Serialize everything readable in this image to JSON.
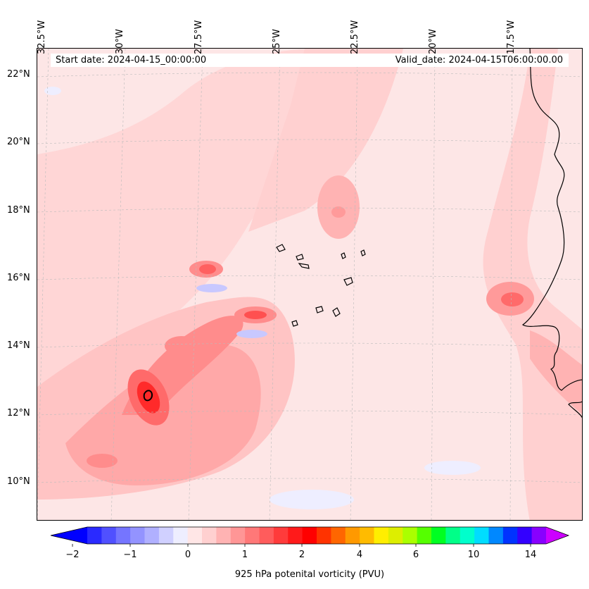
{
  "map": {
    "start_date": "Start date: 2024-04-15_00:00:00",
    "valid_date": "Valid_date: 2024-04-15T06:00:00.00",
    "longitude_labels": [
      "32.5°W",
      "30°W",
      "27.5°W",
      "25°W",
      "22.5°W",
      "20°W",
      "17.5°W"
    ],
    "latitude_labels": [
      "22°N",
      "20°N",
      "18°N",
      "16°N",
      "14°N",
      "12°N",
      "10°N"
    ],
    "background_color": "#fde6e6",
    "coastline_color": "#000000"
  },
  "colorbar": {
    "label": "925 hPa potenital vorticity (PVU)",
    "tick_labels": [
      "−2",
      "−1",
      "0",
      "1",
      "2",
      "4",
      "6",
      "10",
      "14"
    ],
    "colors": [
      "#0000ff",
      "#2a2aff",
      "#5050ff",
      "#7575ff",
      "#9393ff",
      "#b0b0ff",
      "#d0d0ff",
      "#eeeeff",
      "#ffe6e6",
      "#ffd0d0",
      "#ffb3b3",
      "#ff9696",
      "#ff7878",
      "#ff5c5c",
      "#ff3b3b",
      "#ff1a1a",
      "#ff0000",
      "#ff3300",
      "#ff6600",
      "#ff9900",
      "#ffbb00",
      "#ffee00",
      "#ddee00",
      "#aaff00",
      "#55ff00",
      "#00ff22",
      "#00ff88",
      "#00ffcc",
      "#00ddff",
      "#0088ff",
      "#0033ff",
      "#3300ff",
      "#8800ff",
      "#cc00ff"
    ],
    "extend": "both"
  }
}
